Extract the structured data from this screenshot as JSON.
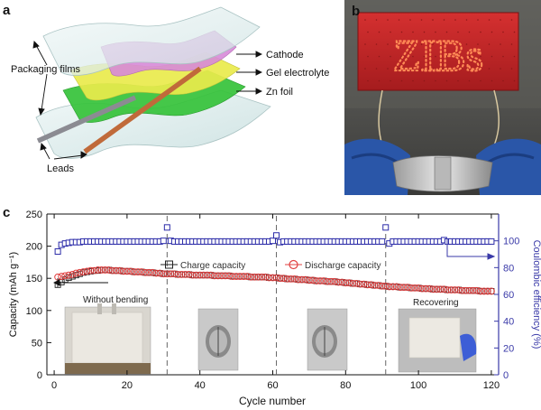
{
  "panels": {
    "a": {
      "letter": "a",
      "labels": {
        "cathode": "Cathode",
        "gel": "Gel electrolyte",
        "zn": "Zn foil",
        "packaging": "Packaging films",
        "leads": "Leads"
      },
      "colors": {
        "cathode": "#d78ad8",
        "gel": "#e9ea4c",
        "zn": "#35c23a",
        "film": "#dfeeee",
        "lead_grey": "#8b8b92",
        "lead_copper": "#c06a3a"
      }
    },
    "b": {
      "letter": "b",
      "sign_text": "ZIBs",
      "colors": {
        "board": "#c0282a",
        "led": "#ff4a2a",
        "glove": "#2a56a8"
      }
    },
    "c": {
      "letter": "c"
    }
  },
  "chart_data": {
    "type": "scatter",
    "xlabel": "Cycle number",
    "ylabel_left": "Capacity (mAh g⁻¹)",
    "ylabel_right": "Coulombic efficiency (%)",
    "xlim": [
      -2,
      122
    ],
    "ylim_left": [
      0,
      250
    ],
    "ylim_right": [
      0,
      120
    ],
    "xticks": [
      0,
      20,
      40,
      60,
      80,
      100,
      120
    ],
    "yticks_left": [
      0,
      50,
      100,
      150,
      200,
      250
    ],
    "yticks_right": [
      0,
      20,
      40,
      60,
      80,
      100
    ],
    "grid": false,
    "legend_position": "upper-center",
    "colors": {
      "charge": "#222222",
      "discharge": "#e04040",
      "efficiency": "#2b2ba8",
      "axis_right": "#3a3aa8"
    },
    "dashed_lines_x": [
      31,
      61,
      91
    ],
    "series": [
      {
        "name": "Charge capacity",
        "axis": "left",
        "x": [
          1,
          2,
          3,
          4,
          5,
          6,
          7,
          8,
          9,
          10,
          11,
          12,
          13,
          14,
          15,
          16,
          17,
          18,
          19,
          20,
          21,
          22,
          23,
          24,
          25,
          26,
          27,
          28,
          29,
          30,
          31,
          32,
          33,
          34,
          35,
          36,
          37,
          38,
          39,
          40,
          41,
          42,
          43,
          44,
          45,
          46,
          47,
          48,
          49,
          50,
          51,
          52,
          53,
          54,
          55,
          56,
          57,
          58,
          59,
          60,
          61,
          62,
          63,
          64,
          65,
          66,
          67,
          68,
          69,
          70,
          71,
          72,
          73,
          74,
          75,
          76,
          77,
          78,
          79,
          80,
          81,
          82,
          83,
          84,
          85,
          86,
          87,
          88,
          89,
          90,
          91,
          92,
          93,
          94,
          95,
          96,
          97,
          98,
          99,
          100,
          101,
          102,
          103,
          104,
          105,
          106,
          107,
          108,
          109,
          110,
          111,
          112,
          113,
          114,
          115,
          116,
          117,
          118,
          119,
          120
        ],
        "values": [
          140,
          144,
          148,
          151,
          153,
          155,
          157,
          159,
          160,
          161,
          162,
          162,
          163,
          163,
          163,
          162,
          162,
          162,
          161,
          161,
          161,
          160,
          160,
          160,
          159,
          159,
          159,
          158,
          158,
          157,
          157,
          157,
          157,
          156,
          156,
          156,
          156,
          155,
          155,
          155,
          155,
          155,
          155,
          154,
          154,
          154,
          154,
          154,
          153,
          153,
          153,
          153,
          153,
          152,
          152,
          152,
          152,
          152,
          151,
          151,
          151,
          150,
          150,
          149,
          149,
          149,
          148,
          148,
          148,
          147,
          147,
          146,
          146,
          146,
          145,
          145,
          145,
          144,
          144,
          143,
          143,
          142,
          142,
          141,
          141,
          140,
          140,
          139,
          139,
          138,
          138,
          137,
          137,
          137,
          136,
          136,
          136,
          135,
          135,
          135,
          134,
          134,
          134,
          133,
          133,
          133,
          133,
          132,
          132,
          132,
          132,
          131,
          131,
          131,
          131,
          131,
          130,
          130,
          130,
          130
        ]
      },
      {
        "name": "Discharge capacity",
        "axis": "left",
        "x": [
          1,
          2,
          3,
          4,
          5,
          6,
          7,
          8,
          9,
          10,
          11,
          12,
          13,
          14,
          15,
          16,
          17,
          18,
          19,
          20,
          21,
          22,
          23,
          24,
          25,
          26,
          27,
          28,
          29,
          30,
          31,
          32,
          33,
          34,
          35,
          36,
          37,
          38,
          39,
          40,
          41,
          42,
          43,
          44,
          45,
          46,
          47,
          48,
          49,
          50,
          51,
          52,
          53,
          54,
          55,
          56,
          57,
          58,
          59,
          60,
          61,
          62,
          63,
          64,
          65,
          66,
          67,
          68,
          69,
          70,
          71,
          72,
          73,
          74,
          75,
          76,
          77,
          78,
          79,
          80,
          81,
          82,
          83,
          84,
          85,
          86,
          87,
          88,
          89,
          90,
          91,
          92,
          93,
          94,
          95,
          96,
          97,
          98,
          99,
          100,
          101,
          102,
          103,
          104,
          105,
          106,
          107,
          108,
          109,
          110,
          111,
          112,
          113,
          114,
          115,
          116,
          117,
          118,
          119,
          120
        ],
        "values": [
          152,
          153,
          154,
          155,
          156,
          158,
          159,
          160,
          161,
          162,
          162,
          163,
          163,
          163,
          163,
          162,
          162,
          162,
          161,
          161,
          161,
          160,
          160,
          160,
          159,
          159,
          159,
          158,
          158,
          157,
          157,
          157,
          157,
          156,
          156,
          156,
          156,
          155,
          155,
          155,
          155,
          155,
          155,
          154,
          154,
          154,
          154,
          154,
          153,
          153,
          153,
          153,
          153,
          152,
          152,
          152,
          152,
          152,
          151,
          151,
          151,
          150,
          150,
          149,
          149,
          149,
          148,
          148,
          148,
          147,
          147,
          146,
          146,
          146,
          145,
          145,
          145,
          144,
          144,
          143,
          143,
          142,
          142,
          141,
          141,
          140,
          140,
          139,
          139,
          138,
          138,
          137,
          137,
          137,
          136,
          136,
          136,
          135,
          135,
          135,
          134,
          134,
          134,
          133,
          133,
          133,
          133,
          132,
          132,
          132,
          132,
          131,
          131,
          131,
          131,
          131,
          130,
          130,
          130,
          130
        ]
      },
      {
        "name": "Coulombic efficiency",
        "axis": "right",
        "x": [
          1,
          2,
          3,
          4,
          5,
          6,
          7,
          8,
          9,
          10,
          11,
          12,
          13,
          14,
          15,
          16,
          17,
          18,
          19,
          20,
          21,
          22,
          23,
          24,
          25,
          26,
          27,
          28,
          29,
          30,
          31,
          32,
          33,
          34,
          35,
          36,
          37,
          38,
          39,
          40,
          41,
          42,
          43,
          44,
          45,
          46,
          47,
          48,
          49,
          50,
          51,
          52,
          53,
          54,
          55,
          56,
          57,
          58,
          59,
          60,
          61,
          62,
          63,
          64,
          65,
          66,
          67,
          68,
          69,
          70,
          71,
          72,
          73,
          74,
          75,
          76,
          77,
          78,
          79,
          80,
          81,
          82,
          83,
          84,
          85,
          86,
          87,
          88,
          89,
          90,
          91,
          92,
          93,
          94,
          95,
          96,
          97,
          98,
          99,
          100,
          101,
          102,
          103,
          104,
          105,
          106,
          107,
          108,
          109,
          110,
          111,
          112,
          113,
          114,
          115,
          116,
          117,
          118,
          119,
          120
        ],
        "values": [
          92,
          97,
          98,
          98.5,
          99,
          99,
          99,
          99.5,
          99.5,
          99.5,
          99.5,
          99.5,
          99.5,
          99.5,
          99.5,
          99.5,
          99.5,
          99.5,
          99.5,
          99.5,
          99.5,
          99.5,
          99.5,
          99.5,
          99.5,
          99.5,
          99.5,
          99.5,
          99.5,
          100,
          110,
          100,
          99.5,
          99.5,
          99.5,
          99.5,
          99.5,
          99.5,
          99.5,
          99.5,
          99.5,
          99.5,
          99.5,
          99.5,
          99.5,
          99.5,
          99.5,
          99.5,
          99.5,
          99.5,
          99.5,
          99.5,
          99.5,
          99.5,
          99.5,
          99.5,
          99.5,
          99.5,
          99.5,
          100,
          104,
          99,
          99.5,
          99.5,
          99.5,
          99.5,
          99.5,
          99.5,
          99.5,
          99.5,
          99.5,
          99.5,
          99.5,
          99.5,
          99.5,
          99.5,
          99.5,
          99.5,
          99.5,
          99.5,
          99.5,
          99.5,
          99.5,
          99.5,
          99.5,
          99.5,
          99.5,
          99.5,
          99.5,
          99.5,
          110,
          98,
          99.5,
          99.5,
          99.5,
          99.5,
          99.5,
          99.5,
          99.5,
          99.5,
          99.5,
          99.5,
          99.5,
          99.5,
          99.5,
          99.5,
          100.5,
          99.5,
          99.5,
          99.5,
          99.5,
          99.5,
          99.5,
          99.5,
          99.5,
          99.5,
          99.5,
          99.5,
          99.5,
          99.5
        ]
      }
    ],
    "annotations": {
      "without_bending": "Without bending",
      "recovering": "Recovering"
    }
  }
}
